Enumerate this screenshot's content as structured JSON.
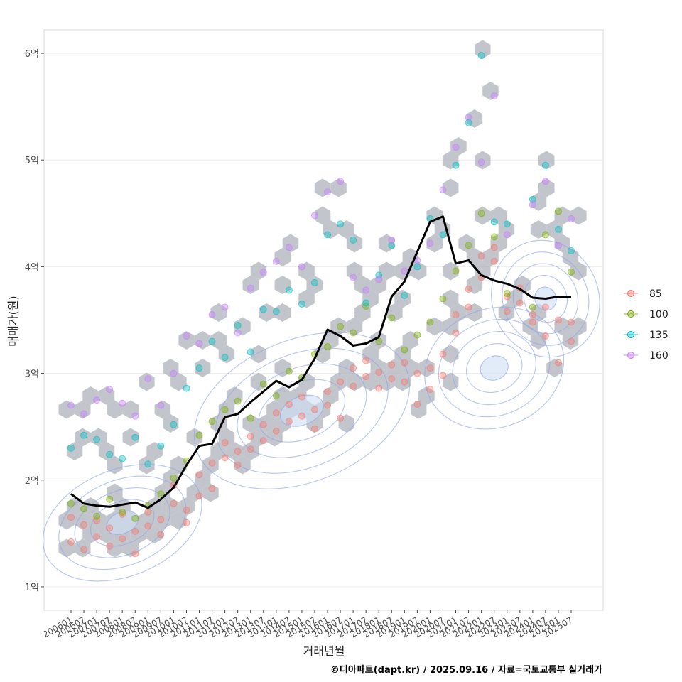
{
  "chart_data": {
    "type": "scatter",
    "title": "",
    "xlabel": "거래년월",
    "ylabel": "매매가(원)",
    "caption": "©디아파트(dapt.kr) / 2025.09.16 / 자료=국토교통부 실거래가",
    "y_unit": "억",
    "ylim": [
      0.78,
      6.22
    ],
    "y_ticks": [
      {
        "value": 1,
        "label": "1억"
      },
      {
        "value": 2,
        "label": "2억"
      },
      {
        "value": 3,
        "label": "3억"
      },
      {
        "value": 4,
        "label": "4억"
      },
      {
        "value": 5,
        "label": "5억"
      },
      {
        "value": 6,
        "label": "6억"
      }
    ],
    "x_tick_labels": [
      "200601",
      "200607",
      "200701",
      "200707",
      "200801",
      "200807",
      "200901",
      "200907",
      "201001",
      "201007",
      "201101",
      "201107",
      "201201",
      "201207",
      "201301",
      "201307",
      "201401",
      "201407",
      "201501",
      "201507",
      "201601",
      "201607",
      "201701",
      "201707",
      "201801",
      "201807",
      "201901",
      "201907",
      "202001",
      "202007",
      "202101",
      "202107",
      "202201",
      "202207",
      "202301",
      "202307",
      "202401",
      "202407",
      "202501",
      "202507"
    ],
    "grid": true,
    "legend_position": "right",
    "legend": [
      {
        "label": "85",
        "color": "#F8766D"
      },
      {
        "label": "100",
        "color": "#7CAE00"
      },
      {
        "label": "135",
        "color": "#00BFC4"
      },
      {
        "label": "160",
        "color": "#C77CFF"
      }
    ],
    "layers": [
      "hexbin density",
      "2d density contours",
      "scatter by area size",
      "trend line"
    ],
    "hex_color": "#b3b8bf",
    "contour_color": "#8fa3e6",
    "trend_color": "#000000",
    "trend_line": {
      "x": [
        "200601",
        "200607",
        "200701",
        "200707",
        "200801",
        "200807",
        "200901",
        "200907",
        "201001",
        "201007",
        "201101",
        "201107",
        "201201",
        "201207",
        "201301",
        "201307",
        "201401",
        "201407",
        "201501",
        "201507",
        "201601",
        "201607",
        "201701",
        "201707",
        "201801",
        "201807",
        "201901",
        "201907",
        "202001",
        "202007",
        "202101",
        "202107",
        "202201",
        "202207",
        "202301",
        "202307",
        "202401",
        "202407",
        "202501",
        "202507"
      ],
      "y": [
        1.87,
        1.78,
        1.76,
        1.75,
        1.77,
        1.79,
        1.74,
        1.82,
        1.93,
        2.14,
        2.32,
        2.34,
        2.59,
        2.62,
        2.73,
        2.83,
        2.93,
        2.87,
        2.94,
        3.14,
        3.41,
        3.35,
        3.26,
        3.28,
        3.34,
        3.72,
        3.86,
        4.14,
        4.42,
        4.47,
        4.03,
        4.06,
        3.92,
        3.87,
        3.84,
        3.79,
        3.71,
        3.7,
        3.72,
        3.72
      ]
    },
    "scatter_series": [
      {
        "name": "85",
        "points": [
          [
            "200601",
            1.65
          ],
          [
            "200601",
            1.42
          ],
          [
            "200607",
            1.58
          ],
          [
            "200607",
            1.35
          ],
          [
            "200701",
            1.47
          ],
          [
            "200701",
            1.62
          ],
          [
            "200707",
            1.38
          ],
          [
            "200707",
            1.55
          ],
          [
            "200801",
            1.45
          ],
          [
            "200801",
            1.68
          ],
          [
            "200807",
            1.52
          ],
          [
            "200807",
            1.31
          ],
          [
            "200901",
            1.57
          ],
          [
            "200901",
            1.7
          ],
          [
            "200907",
            1.63
          ],
          [
            "200907",
            1.49
          ],
          [
            "201001",
            1.78
          ],
          [
            "201001",
            1.95
          ],
          [
            "201007",
            1.72
          ],
          [
            "201007",
            1.6
          ],
          [
            "201101",
            1.85
          ],
          [
            "201101",
            2.05
          ],
          [
            "201107",
            2.16
          ],
          [
            "201107",
            1.92
          ],
          [
            "201201",
            2.21
          ],
          [
            "201201",
            2.35
          ],
          [
            "201207",
            2.27
          ],
          [
            "201207",
            2.14
          ],
          [
            "201301",
            2.41
          ],
          [
            "201301",
            2.29
          ],
          [
            "201307",
            2.37
          ],
          [
            "201307",
            2.52
          ],
          [
            "201401",
            2.46
          ],
          [
            "201401",
            2.63
          ],
          [
            "201407",
            2.55
          ],
          [
            "201407",
            2.71
          ],
          [
            "201501",
            2.6
          ],
          [
            "201501",
            2.78
          ],
          [
            "201507",
            2.66
          ],
          [
            "201507",
            2.48
          ],
          [
            "201601",
            2.83
          ],
          [
            "201601",
            2.7
          ],
          [
            "201607",
            2.92
          ],
          [
            "201607",
            2.58
          ],
          [
            "201701",
            3.05
          ],
          [
            "201701",
            2.88
          ],
          [
            "201707",
            2.97
          ],
          [
            "201707",
            3.12
          ],
          [
            "201801",
            2.86
          ],
          [
            "201801",
            3.01
          ],
          [
            "201807",
            3.08
          ],
          [
            "201807",
            2.95
          ],
          [
            "201901",
            3.1
          ],
          [
            "201901",
            2.92
          ],
          [
            "201907",
            2.71
          ],
          [
            "201907",
            3.0
          ],
          [
            "202001",
            3.05
          ],
          [
            "202001",
            2.85
          ],
          [
            "202007",
            3.18
          ],
          [
            "202007",
            2.98
          ],
          [
            "202101",
            3.38
          ],
          [
            "202101",
            3.55
          ],
          [
            "202107",
            3.62
          ],
          [
            "202107",
            3.79
          ],
          [
            "202201",
            3.9
          ],
          [
            "202201",
            4.1
          ],
          [
            "202207",
            4.18
          ],
          [
            "202207",
            4.05
          ],
          [
            "202301",
            3.72
          ],
          [
            "202301",
            3.58
          ],
          [
            "202307",
            3.66
          ],
          [
            "202307",
            3.8
          ],
          [
            "202401",
            3.55
          ],
          [
            "202401",
            3.48
          ],
          [
            "202407",
            3.62
          ],
          [
            "202407",
            3.35
          ],
          [
            "202501",
            3.5
          ],
          [
            "202501",
            3.1
          ],
          [
            "202507",
            3.48
          ],
          [
            "202507",
            3.3
          ]
        ]
      },
      {
        "name": "100",
        "points": [
          [
            "200601",
            1.78
          ],
          [
            "200607",
            1.73
          ],
          [
            "200701",
            1.66
          ],
          [
            "200707",
            1.82
          ],
          [
            "200801",
            1.7
          ],
          [
            "200807",
            1.64
          ],
          [
            "200901",
            1.76
          ],
          [
            "200907",
            1.87
          ],
          [
            "201001",
            2.02
          ],
          [
            "201007",
            2.18
          ],
          [
            "201101",
            2.42
          ],
          [
            "201107",
            2.55
          ],
          [
            "201201",
            2.66
          ],
          [
            "201207",
            2.74
          ],
          [
            "201301",
            2.58
          ],
          [
            "201307",
            2.9
          ],
          [
            "201401",
            2.79
          ],
          [
            "201407",
            3.02
          ],
          [
            "201501",
            2.96
          ],
          [
            "201507",
            3.18
          ],
          [
            "201601",
            3.25
          ],
          [
            "201607",
            3.44
          ],
          [
            "201701",
            3.38
          ],
          [
            "201707",
            3.63
          ],
          [
            "201801",
            3.3
          ],
          [
            "201807",
            3.52
          ],
          [
            "201901",
            3.22
          ],
          [
            "201907",
            3.36
          ],
          [
            "202001",
            3.48
          ],
          [
            "202007",
            3.7
          ],
          [
            "202101",
            3.96
          ],
          [
            "202107",
            4.2
          ],
          [
            "202201",
            4.5
          ],
          [
            "202207",
            4.28
          ],
          [
            "202301",
            3.75
          ],
          [
            "202401",
            3.62
          ],
          [
            "202407",
            4.3
          ],
          [
            "202501",
            4.52
          ],
          [
            "202507",
            3.95
          ]
        ]
      },
      {
        "name": "135",
        "points": [
          [
            "200601",
            2.3
          ],
          [
            "200607",
            2.42
          ],
          [
            "200701",
            2.38
          ],
          [
            "200707",
            2.24
          ],
          [
            "200801",
            2.2
          ],
          [
            "200807",
            2.4
          ],
          [
            "200901",
            2.15
          ],
          [
            "200907",
            2.32
          ],
          [
            "201001",
            2.52
          ],
          [
            "201007",
            2.86
          ],
          [
            "201101",
            3.05
          ],
          [
            "201107",
            3.3
          ],
          [
            "201201",
            3.15
          ],
          [
            "201207",
            3.45
          ],
          [
            "201301",
            3.2
          ],
          [
            "201307",
            3.6
          ],
          [
            "201401",
            3.58
          ],
          [
            "201407",
            3.78
          ],
          [
            "201501",
            3.65
          ],
          [
            "201507",
            3.85
          ],
          [
            "201601",
            4.3
          ],
          [
            "201607",
            4.4
          ],
          [
            "201701",
            4.25
          ],
          [
            "201707",
            3.66
          ],
          [
            "201801",
            3.92
          ],
          [
            "201807",
            4.2
          ],
          [
            "201901",
            3.73
          ],
          [
            "201907",
            4.0
          ],
          [
            "202001",
            4.45
          ],
          [
            "202007",
            4.3
          ],
          [
            "202101",
            4.95
          ],
          [
            "202107",
            5.35
          ],
          [
            "202201",
            5.98
          ],
          [
            "202207",
            4.42
          ],
          [
            "202301",
            4.4
          ],
          [
            "202401",
            4.63
          ],
          [
            "202407",
            4.95
          ],
          [
            "202501",
            4.35
          ],
          [
            "202507",
            4.15
          ]
        ]
      },
      {
        "name": "160",
        "points": [
          [
            "200601",
            2.7
          ],
          [
            "200607",
            2.62
          ],
          [
            "200701",
            2.75
          ],
          [
            "200707",
            2.85
          ],
          [
            "200801",
            2.72
          ],
          [
            "200807",
            2.6
          ],
          [
            "200901",
            2.95
          ],
          [
            "200907",
            2.7
          ],
          [
            "201001",
            3.0
          ],
          [
            "201007",
            3.35
          ],
          [
            "201101",
            3.28
          ],
          [
            "201107",
            3.55
          ],
          [
            "201201",
            3.62
          ],
          [
            "201207",
            3.38
          ],
          [
            "201301",
            3.8
          ],
          [
            "201307",
            3.95
          ],
          [
            "201401",
            4.05
          ],
          [
            "201407",
            4.18
          ],
          [
            "201501",
            4.0
          ],
          [
            "201507",
            4.48
          ],
          [
            "201601",
            4.7
          ],
          [
            "201607",
            4.8
          ],
          [
            "201701",
            3.9
          ],
          [
            "201707",
            3.78
          ],
          [
            "201801",
            3.88
          ],
          [
            "201807",
            4.25
          ],
          [
            "201901",
            3.96
          ],
          [
            "201907",
            4.06
          ],
          [
            "202001",
            4.22
          ],
          [
            "202007",
            4.72
          ],
          [
            "202101",
            5.12
          ],
          [
            "202107",
            5.4
          ],
          [
            "202201",
            4.98
          ],
          [
            "202207",
            5.6
          ],
          [
            "202301",
            4.3
          ],
          [
            "202401",
            4.58
          ],
          [
            "202407",
            4.8
          ],
          [
            "202501",
            4.2
          ],
          [
            "202507",
            4.45
          ]
        ]
      }
    ]
  }
}
